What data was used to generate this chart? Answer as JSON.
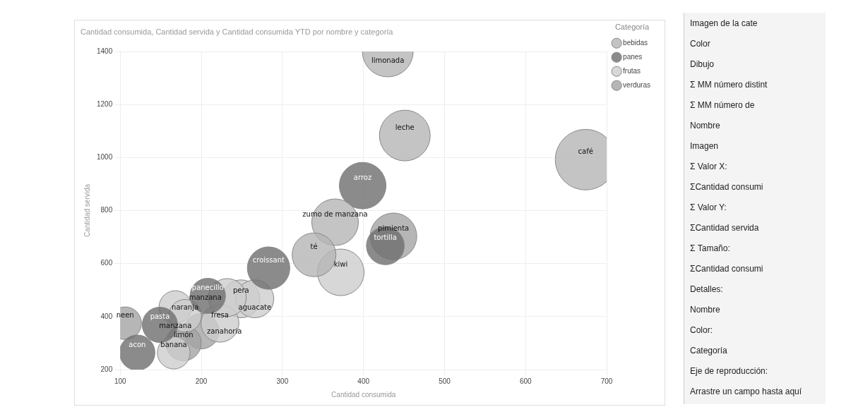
{
  "chart_data": [
    {
      "type": "bubble",
      "title": "Cantidad consumida, Cantidad servida y Cantidad consumida YTD por nombre y categoría",
      "xlabel": "Cantidad consumida",
      "ylabel": "Cantidad servida",
      "legend_title": "Categoría",
      "legend": "top right",
      "grid": true,
      "xlim": [
        100,
        700
      ],
      "xticks": [
        100,
        200,
        300,
        400,
        500,
        600,
        700
      ],
      "ylim": [
        200,
        1400
      ],
      "yticks": [
        200,
        400,
        600,
        800,
        1000,
        1200,
        1400
      ],
      "series": [
        {
          "name": "bebidas",
          "color": "#b5b5b5",
          "x": [
            430,
            451,
            674,
            365,
            339
          ],
          "values": [
            1400,
            1083,
            992,
            756,
            633
          ],
          "sizes": [
            0.7,
            0.7,
            1,
            0.59,
            0.52
          ]
        },
        {
          "name": "panes",
          "color": "#6e6e6e",
          "x": [
            399,
            427,
            283,
            208,
            149,
            121
          ],
          "values": [
            894,
            667,
            583,
            478,
            369,
            264
          ],
          "sizes": [
            0.59,
            0.39,
            0.49,
            0.34,
            0.34,
            0.34
          ]
        },
        {
          "name": "frutas",
          "color": "#cdcdcd",
          "x": [
            372,
            249,
            266,
            223,
            232,
            168,
            180,
            166
          ],
          "values": [
            567,
            467,
            467,
            375,
            472,
            436,
            403,
            264
          ],
          "sizes": [
            0.59,
            0.39,
            0.39,
            0.39,
            0.39,
            0.29,
            0.29,
            0.29
          ]
        },
        {
          "name": "verduras",
          "color": "#a4a4a4",
          "x": [
            437,
            200,
            178,
            106
          ],
          "values": [
            703,
            345,
            300,
            375
          ],
          "sizes": [
            0.59,
            0.34,
            0.34,
            0.29
          ]
        }
      ],
      "annotations": [
        {
          "text": "limonada",
          "x": 430,
          "y": 1400
        },
        {
          "text": "leche",
          "x": 451,
          "y": 1083
        },
        {
          "text": "café",
          "x": 674,
          "y": 992
        },
        {
          "text": "zumo de manzana",
          "x": 365,
          "y": 756
        },
        {
          "text": "té",
          "x": 339,
          "y": 633
        },
        {
          "text": "arroz",
          "x": 399,
          "y": 894
        },
        {
          "text": "tortilla",
          "x": 427,
          "y": 667
        },
        {
          "text": "croissant",
          "x": 283,
          "y": 583
        },
        {
          "text": "panecillo",
          "x": 208,
          "y": 478
        },
        {
          "text": "pasta",
          "x": 149,
          "y": 369
        },
        {
          "text": "acon",
          "x": 121,
          "y": 264
        },
        {
          "text": "kiwi",
          "x": 372,
          "y": 567
        },
        {
          "text": "pera",
          "x": 249,
          "y": 467
        },
        {
          "text": "aguacate",
          "x": 266,
          "y": 467
        },
        {
          "text": "fresa",
          "x": 223,
          "y": 375
        },
        {
          "text": "manzana",
          "x": 232,
          "y": 472
        },
        {
          "text": "manzana",
          "x": 168,
          "y": 436
        },
        {
          "text": "naranja",
          "x": 180,
          "y": 403
        },
        {
          "text": "banana",
          "x": 166,
          "y": 264
        },
        {
          "text": "pimienta",
          "x": 437,
          "y": 703
        },
        {
          "text": "zanahoria",
          "x": 200,
          "y": 345
        },
        {
          "text": "limón",
          "x": 178,
          "y": 300
        },
        {
          "text": "neen",
          "x": 106,
          "y": 375
        }
      ]
    },
    {
      "type": "other",
      "annotations": [
        "Imagen de la cate",
        "Color",
        "Dibujo",
        "Σ MM número distint",
        "Σ MM número de",
        "Nombre",
        "Imagen",
        "Σ Valor X:",
        "ΣCantidad consumi",
        "Σ Valor Y:",
        "ΣCantidad servida",
        "Σ Tamaño:",
        "ΣCantidad consumi",
        "Detalles:",
        "Nombre",
        "Color:",
        "Categoría",
        "Eje de reproducción:",
        "Arrastre un campo hasta aquí"
      ]
    }
  ]
}
